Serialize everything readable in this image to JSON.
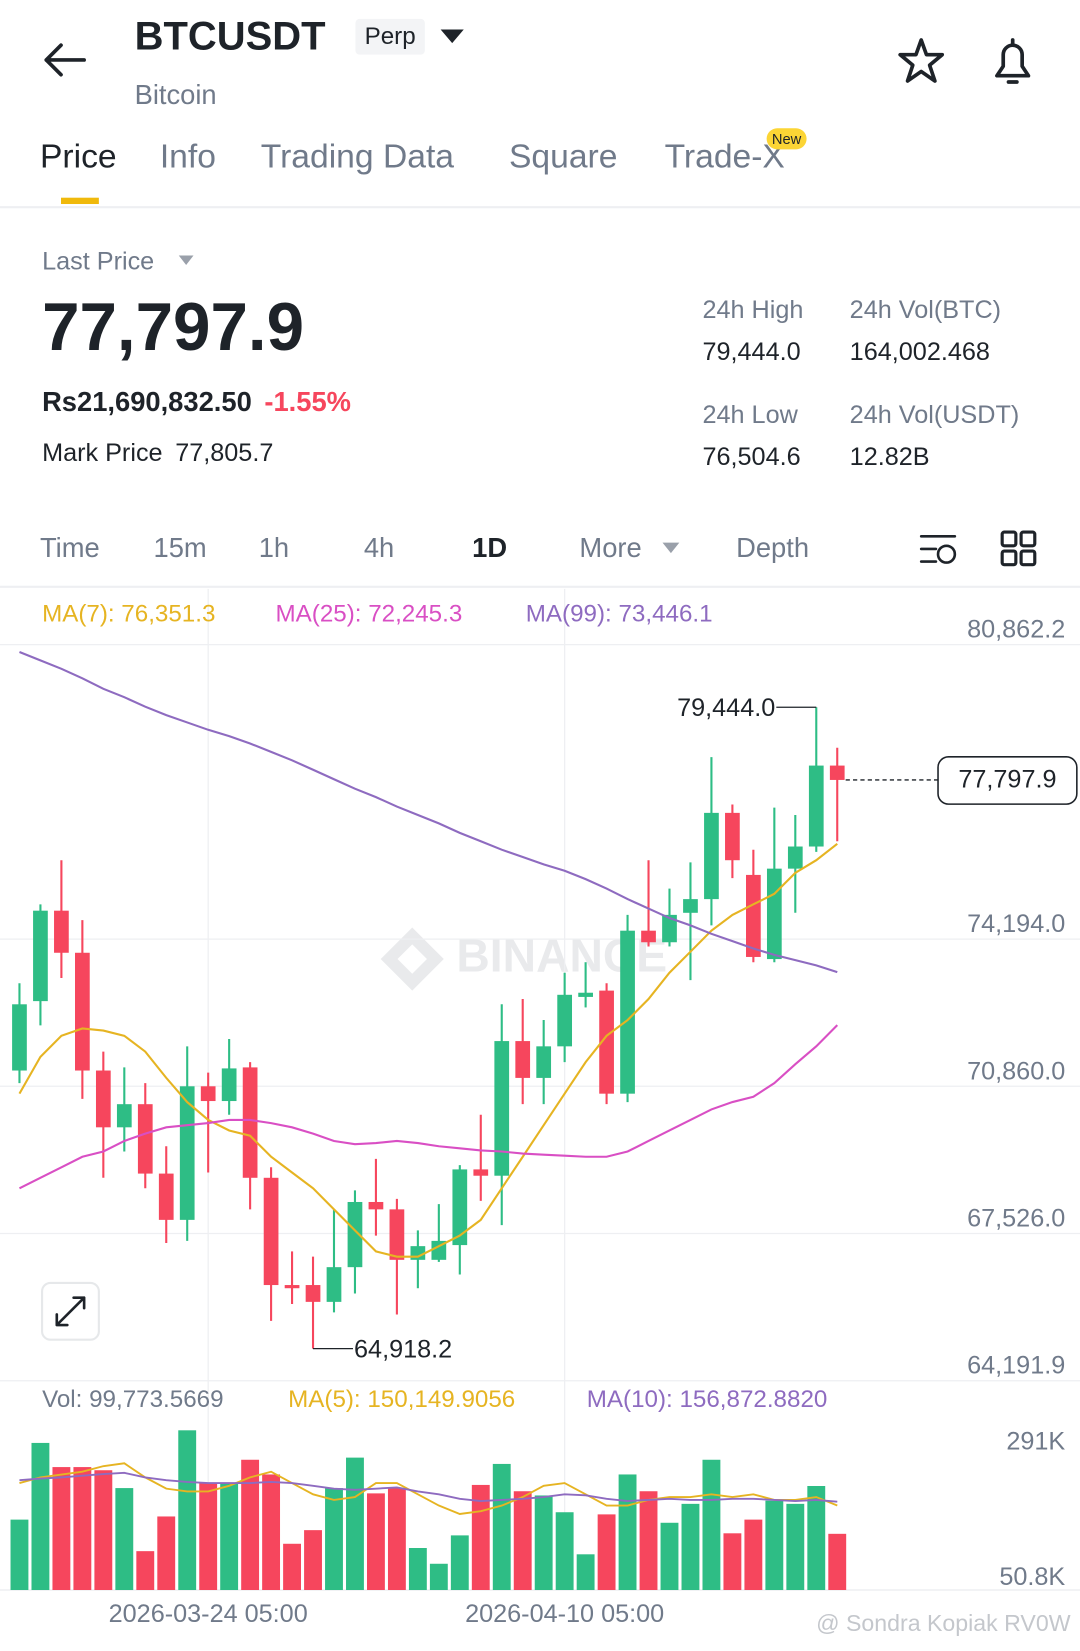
{
  "header": {
    "title": "BTCUSDT",
    "badge": "Perp",
    "subtitle": "Bitcoin"
  },
  "tabs": [
    "Price",
    "Info",
    "Trading Data",
    "Square",
    "Trade-X"
  ],
  "tabs_badge": "New",
  "last_price": {
    "label": "Last Price",
    "value": "77,797.9",
    "fiat": "Rs21,690,832.50",
    "change": "-1.55%",
    "mark_label": "Mark Price",
    "mark_value": "77,805.7"
  },
  "stats": [
    {
      "label": "24h High",
      "value": "79,444.0"
    },
    {
      "label": "24h Vol(BTC)",
      "value": "164,002.468"
    },
    {
      "label": "24h Low",
      "value": "76,504.6"
    },
    {
      "label": "24h Vol(USDT)",
      "value": "12.82B"
    }
  ],
  "intervals": [
    "Time",
    "15m",
    "1h",
    "4h",
    "1D",
    "More",
    "Depth"
  ],
  "watermark_footer": "@ Sondra Kopiak RV0W",
  "chart_data": [
    {
      "type": "candlestick",
      "categories": [
        null,
        null,
        null,
        null,
        null,
        null,
        null,
        null,
        null,
        "2026-03-24 05:00",
        null,
        null,
        null,
        null,
        null,
        null,
        null,
        null,
        null,
        null,
        null,
        null,
        null,
        null,
        null,
        null,
        "2026-04-10 05:00",
        null,
        null,
        null,
        null,
        null,
        null,
        null,
        null,
        null,
        null,
        null,
        null,
        null
      ],
      "open": [
        71217,
        72789,
        74837,
        73884,
        71217,
        69931,
        70455,
        68883,
        67835,
        70860,
        70526,
        71288,
        68788,
        66359,
        66359,
        65978,
        66764,
        68240,
        68073,
        66930,
        66930,
        67264,
        68978,
        68835,
        71884,
        71050,
        71765,
        72884,
        73027,
        70693,
        74384,
        74122,
        74789,
        75099,
        77052,
        75647,
        73741,
        75789,
        76290,
        78123
      ],
      "high": [
        73194,
        74980,
        75980,
        74622,
        71646,
        71288,
        70931,
        69502,
        71765,
        71169,
        71931,
        71407,
        69026,
        67121,
        67002,
        68073,
        68502,
        69216,
        68311,
        67597,
        68192,
        69074,
        70217,
        72717,
        72836,
        72360,
        73432,
        73670,
        73194,
        74742,
        75980,
        75337,
        75932,
        78314,
        77242,
        76218,
        77171,
        77004,
        79444.0,
        78528
      ],
      "low": [
        70931,
        72241,
        73313,
        70574,
        68788,
        69383,
        68550,
        67311,
        67359,
        68907,
        70217,
        68073,
        65549,
        65930,
        64918.2,
        65739,
        66168,
        67478,
        65692,
        66287,
        66883,
        66597,
        68264,
        67716,
        70455,
        70455,
        71407,
        72646,
        70455,
        70502,
        74027,
        74027,
        73265,
        74503,
        75575,
        73670,
        73670,
        74789,
        76170,
        76409
      ],
      "close": [
        72717,
        74837,
        73884,
        71217,
        69931,
        70455,
        68883,
        67835,
        70860,
        70526,
        71265,
        68788,
        66359,
        66287,
        65978,
        66764,
        68240,
        68073,
        66930,
        67240,
        67359,
        68978,
        68835,
        71884,
        71050,
        71765,
        72932,
        72979,
        70693,
        74384,
        74122,
        74742,
        75099,
        77052,
        75980,
        73789,
        75789,
        76290,
        78123,
        77797.9
      ],
      "up_color": "#2ebd85",
      "down_color": "#f6465d",
      "series": [
        {
          "name": "MA(7): 76,351.3",
          "color": "#e6b422",
          "values": [
            70693,
            71527,
            72003,
            72170,
            72122,
            72003,
            71646,
            71050,
            70502,
            70098,
            69859,
            69740,
            69264,
            68907,
            68550,
            68073,
            67597,
            67121,
            67002,
            67002,
            67240,
            67478,
            67835,
            68550,
            69264,
            69979,
            70693,
            71407,
            72003,
            72360,
            72836,
            73432,
            73908,
            74384,
            74742,
            74980,
            75218,
            75694,
            75980,
            76351.3
          ]
        },
        {
          "name": "MA(25): 72,245.3",
          "color": "#d94fc4",
          "values": [
            68550,
            68788,
            69026,
            69264,
            69383,
            69621,
            69788,
            69931,
            69979,
            70026,
            70098,
            70098,
            70026,
            69931,
            69788,
            69621,
            69550,
            69574,
            69621,
            69574,
            69502,
            69455,
            69407,
            69383,
            69336,
            69312,
            69288,
            69264,
            69264,
            69383,
            69621,
            69859,
            70098,
            70336,
            70502,
            70622,
            70931,
            71360,
            71765,
            72245.3
          ]
        },
        {
          "name": "MA(99): 73,446.1",
          "color": "#8e6bc0",
          "values": [
            80695,
            80505,
            80314,
            80100,
            79862,
            79671,
            79457,
            79266,
            79100,
            78933,
            78790,
            78623,
            78433,
            78242,
            78028,
            77814,
            77599,
            77409,
            77194,
            77004,
            76813,
            76599,
            76409,
            76218,
            76051,
            75885,
            75742,
            75551,
            75337,
            75099,
            74884,
            74670,
            74503,
            74313,
            74146,
            73979,
            73837,
            73717,
            73598,
            73446.1
          ]
        }
      ],
      "ylim": [
        64191.9,
        80862.2
      ],
      "yticks": [
        {
          "value": 80862.2,
          "label": "80,862.2"
        },
        {
          "value": 74194.0,
          "label": "74,194.0"
        },
        {
          "value": 70860.0,
          "label": "70,860.0"
        },
        {
          "value": 67526.0,
          "label": "67,526.0"
        },
        {
          "value": 64191.9,
          "label": "64,191.9"
        }
      ],
      "grid": true,
      "high_label": "79,444.0",
      "low_label": "64,918.2",
      "last_price_label": "77,797.9",
      "watermark": "BINANCE"
    },
    {
      "type": "bar",
      "series": [
        {
          "name": "Vol: 99,773.5669",
          "values": [
            125000,
            261200,
            218300,
            218300,
            212700,
            181000,
            69000,
            130600,
            283600,
            190300,
            190300,
            231300,
            205200,
            82100,
            106300,
            181000,
            235100,
            171600,
            181000,
            74600,
            46600,
            97000,
            186600,
            223900,
            175400,
            167900,
            138100,
            63400,
            134300,
            205200,
            175400,
            119400,
            153000,
            231300,
            100700,
            125000,
            158600,
            153000,
            184700,
            99773.5669
          ]
        },
        {
          "name": "MA(5): 150,149.9056",
          "color": "#e6b422",
          "values": [
            190000,
            200000,
            205000,
            210000,
            220000,
            225000,
            200000,
            180000,
            175000,
            175000,
            185000,
            200000,
            210000,
            190000,
            170000,
            160000,
            165000,
            190000,
            190000,
            170000,
            150000,
            135000,
            140000,
            150000,
            165000,
            185000,
            190000,
            170000,
            150000,
            150000,
            160000,
            165000,
            165000,
            170000,
            165000,
            170000,
            160000,
            160000,
            165000,
            150149.9056
          ]
        },
        {
          "name": "MA(10): 156,872.8820",
          "color": "#8e6bc0",
          "values": [
            195000,
            198000,
            200000,
            203000,
            206000,
            208000,
            200000,
            195000,
            192000,
            190000,
            190000,
            190000,
            192000,
            190000,
            185000,
            180000,
            178000,
            180000,
            182000,
            175000,
            170000,
            162000,
            158000,
            160000,
            162000,
            165000,
            170000,
            168000,
            162000,
            158000,
            160000,
            162000,
            160000,
            160000,
            162000,
            162000,
            160000,
            158000,
            160000,
            156872.882
          ]
        }
      ],
      "ylim": [
        0,
        310000
      ],
      "yticks": [
        {
          "value": 291000,
          "label": "291K"
        },
        {
          "value": 50800,
          "label": "50.8K"
        }
      ]
    }
  ]
}
